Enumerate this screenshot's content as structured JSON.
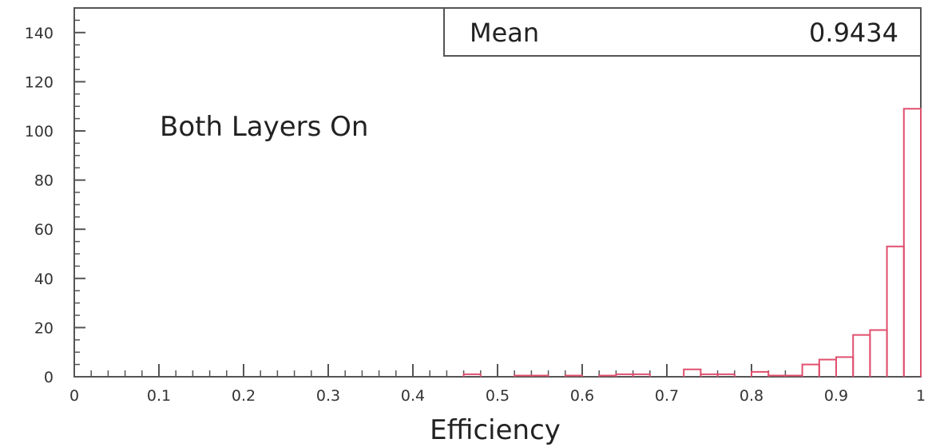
{
  "chart_data": {
    "type": "histogram",
    "xlabel": "Efficiency",
    "ylabel": "",
    "xlim": [
      0,
      1
    ],
    "ylim": [
      0,
      150
    ],
    "x_ticks": [
      0,
      0.1,
      0.2,
      0.3,
      0.4,
      0.5,
      0.6,
      0.7,
      0.8,
      0.9,
      1
    ],
    "x_tick_labels": [
      "0",
      "0.1",
      "0.2",
      "0.3",
      "0.4",
      "0.5",
      "0.6",
      "0.7",
      "0.8",
      "0.9",
      "1"
    ],
    "y_ticks": [
      0,
      20,
      40,
      60,
      80,
      100,
      120,
      140
    ],
    "y_tick_labels": [
      "0",
      "20",
      "40",
      "60",
      "80",
      "100",
      "120",
      "140"
    ],
    "bin_width": 0.02,
    "bins": [
      {
        "x0": 0.46,
        "x1": 0.48,
        "count": 1
      },
      {
        "x0": 0.52,
        "x1": 0.54,
        "count": 0.5
      },
      {
        "x0": 0.54,
        "x1": 0.56,
        "count": 0.5
      },
      {
        "x0": 0.58,
        "x1": 0.6,
        "count": 0.5
      },
      {
        "x0": 0.62,
        "x1": 0.64,
        "count": 0.5
      },
      {
        "x0": 0.64,
        "x1": 0.66,
        "count": 1
      },
      {
        "x0": 0.66,
        "x1": 0.68,
        "count": 1
      },
      {
        "x0": 0.72,
        "x1": 0.74,
        "count": 3
      },
      {
        "x0": 0.74,
        "x1": 0.76,
        "count": 1
      },
      {
        "x0": 0.76,
        "x1": 0.78,
        "count": 1
      },
      {
        "x0": 0.8,
        "x1": 0.82,
        "count": 2
      },
      {
        "x0": 0.82,
        "x1": 0.84,
        "count": 0.5
      },
      {
        "x0": 0.84,
        "x1": 0.86,
        "count": 0.5
      },
      {
        "x0": 0.86,
        "x1": 0.88,
        "count": 5
      },
      {
        "x0": 0.88,
        "x1": 0.9,
        "count": 7
      },
      {
        "x0": 0.9,
        "x1": 0.92,
        "count": 8
      },
      {
        "x0": 0.92,
        "x1": 0.94,
        "count": 17
      },
      {
        "x0": 0.94,
        "x1": 0.96,
        "count": 19
      },
      {
        "x0": 0.96,
        "x1": 0.98,
        "count": 53
      },
      {
        "x0": 0.98,
        "x1": 1.0,
        "count": 109
      }
    ],
    "stats": {
      "label": "Mean",
      "value": "0.9434"
    },
    "annotation": "Both Layers On",
    "line_color": "#e0506e",
    "grid": false,
    "legend": "top-right"
  }
}
